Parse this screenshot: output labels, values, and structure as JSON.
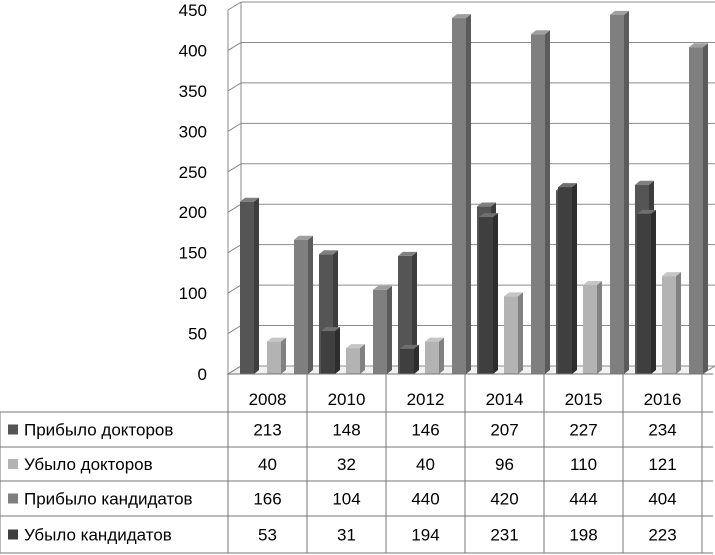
{
  "chart_data": {
    "type": "bar",
    "title": "",
    "xlabel": "",
    "ylabel": "",
    "categories": [
      "2008",
      "2010",
      "2012",
      "2014",
      "2015",
      "2016"
    ],
    "ylim": [
      0,
      450
    ],
    "yticks": [
      0,
      50,
      100,
      150,
      200,
      250,
      300,
      350,
      400,
      450
    ],
    "grid": true,
    "legend": "data-table-bottom",
    "series": [
      {
        "name": "Прибыло докторов",
        "values": [
          213,
          148,
          146,
          207,
          227,
          234
        ],
        "color": "#555555"
      },
      {
        "name": "Убыло докторов",
        "values": [
          40,
          32,
          40,
          96,
          110,
          121
        ],
        "color": "#b3b3b3"
      },
      {
        "name": "Прибыло кандидатов",
        "values": [
          166,
          104,
          440,
          420,
          444,
          404
        ],
        "color": "#7f7f7f"
      },
      {
        "name": "Убыло кандидатов",
        "values": [
          53,
          31,
          194,
          231,
          198,
          223
        ],
        "color": "#3f3f3f"
      }
    ]
  }
}
